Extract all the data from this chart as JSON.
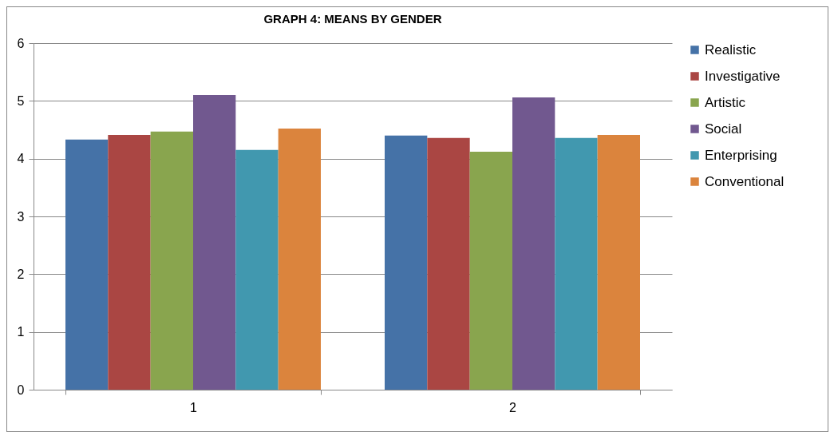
{
  "chart_data": {
    "type": "bar",
    "title": "GRAPH 4: MEANS BY GENDER",
    "categories": [
      "1",
      "2"
    ],
    "series": [
      {
        "name": "Realistic",
        "color": "#4572a7",
        "values": [
          4.33,
          4.4
        ]
      },
      {
        "name": "Investigative",
        "color": "#aa4643",
        "values": [
          4.41,
          4.36
        ]
      },
      {
        "name": "Artistic",
        "color": "#89a54e",
        "values": [
          4.47,
          4.12
        ]
      },
      {
        "name": "Social",
        "color": "#71588f",
        "values": [
          5.1,
          5.06
        ]
      },
      {
        "name": "Enterprising",
        "color": "#4198af",
        "values": [
          4.15,
          4.36
        ]
      },
      {
        "name": "Conventional",
        "color": "#db843d",
        "values": [
          4.52,
          4.41
        ]
      }
    ],
    "ylim": [
      0,
      6
    ],
    "yticks": [
      0,
      1,
      2,
      3,
      4,
      5,
      6
    ],
    "grid": "y",
    "legend": "right"
  }
}
